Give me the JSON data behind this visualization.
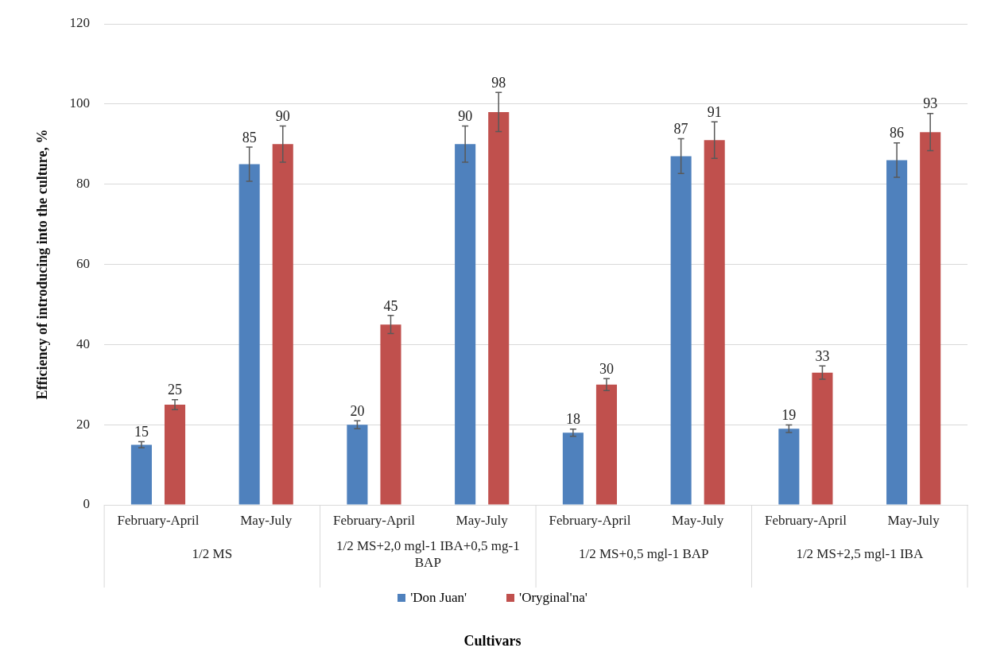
{
  "chart_data": {
    "type": "bar",
    "ylabel": "Efficiency of introducing into the culture, %",
    "categories": [
      "February-April",
      "May-July",
      "February-April",
      "May-July",
      "February-April",
      "May-July",
      "February-April",
      "May-July"
    ],
    "annotations": [
      "1/2 MS",
      "1/2 MS+2,0 mgl-1 IBA+0,5 mg-1 BAP",
      "1/2 MS+0,5 mgl-1 BAP",
      "1/2 MS+2,5 mgl-1 IBA",
      "Cultivars"
    ],
    "series": [
      {
        "name": "'Don Juan'",
        "color": "#4f81bd",
        "values": [
          15,
          85,
          20,
          90,
          18,
          87,
          19,
          86
        ],
        "errors": [
          0.75,
          4.25,
          1,
          4.5,
          0.9,
          4.35,
          0.95,
          4.3
        ]
      },
      {
        "name": "'Oryginal'na'",
        "color": "#c0504d",
        "values": [
          25,
          90,
          45,
          98,
          30,
          91,
          33,
          93
        ],
        "errors": [
          1.25,
          4.5,
          2.25,
          4.9,
          1.5,
          4.55,
          1.65,
          4.65
        ]
      }
    ],
    "ylim": [
      0,
      120
    ],
    "yticks": [
      0,
      20,
      40,
      60,
      80,
      100,
      120
    ],
    "grid": "y",
    "legend": "bottom",
    "data_labels": true
  }
}
